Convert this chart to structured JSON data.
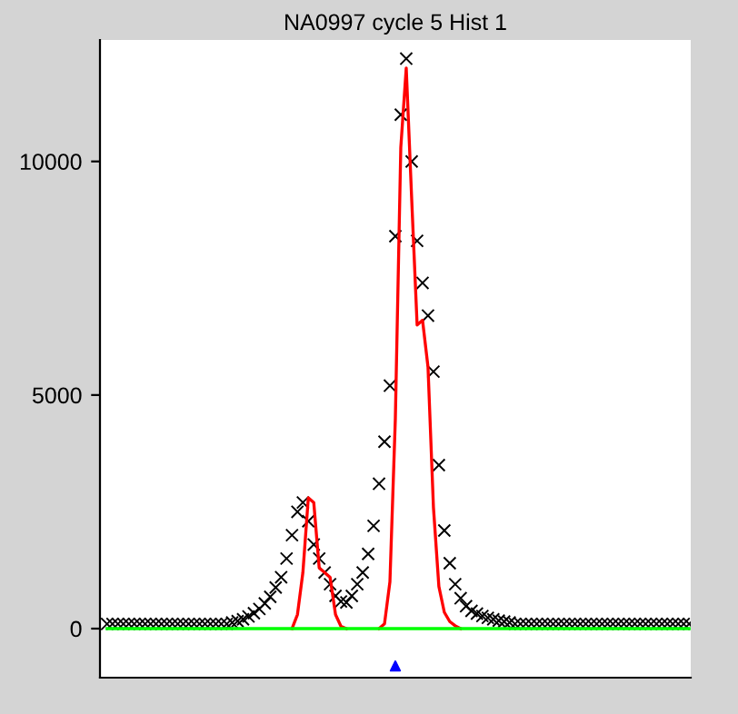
{
  "chart_data": {
    "type": "line",
    "title": "NA0997 cycle 5 Hist 1",
    "categories": [
      null,
      null,
      null,
      null,
      null,
      null,
      null,
      null,
      null,
      null,
      null,
      null,
      null,
      null,
      null,
      null,
      null,
      null,
      null,
      null,
      null,
      null,
      null,
      null,
      null,
      null,
      null,
      null,
      null,
      null,
      null,
      null,
      null,
      null,
      null,
      null,
      null,
      null,
      null,
      null,
      null,
      null,
      null,
      null,
      null,
      null,
      null,
      null,
      null,
      null,
      null,
      null,
      null,
      null,
      null,
      null,
      null,
      null,
      null,
      null,
      null,
      null,
      null,
      null,
      null,
      null,
      null,
      null,
      null,
      null,
      null,
      null,
      null,
      null,
      null,
      null,
      null,
      null,
      null,
      null,
      null,
      null,
      null,
      null,
      null,
      null,
      null,
      null,
      null,
      null,
      null,
      null,
      null,
      null,
      null,
      null,
      null,
      null,
      null,
      null,
      null,
      null,
      null,
      null,
      null,
      null,
      null,
      null
    ],
    "series": [
      {
        "color": "#00ff00",
        "values": [
          0,
          0,
          0,
          0,
          0,
          0,
          0,
          0,
          0,
          0,
          0,
          0,
          0,
          0,
          0,
          0,
          0,
          0,
          0,
          0,
          0,
          0,
          0,
          0,
          0,
          0,
          0,
          0,
          0,
          0,
          0,
          0,
          0,
          0,
          0,
          0,
          0,
          0,
          0,
          0,
          0,
          0,
          0,
          0,
          0,
          0,
          0,
          0,
          0,
          0,
          0,
          0,
          0,
          0,
          0,
          0,
          0,
          0,
          0,
          0,
          0,
          0,
          0,
          0,
          0,
          0,
          0,
          0,
          0,
          0,
          0,
          0,
          0,
          0,
          0,
          0,
          0,
          0,
          0,
          0,
          0,
          0,
          0,
          0,
          0,
          0,
          0,
          0,
          0,
          0,
          0,
          0,
          0,
          0,
          0,
          0,
          0,
          0,
          0,
          0,
          0,
          0,
          0,
          0,
          0,
          0,
          0,
          0
        ]
      },
      {
        "color": "#ff0000",
        "values": [
          null,
          null,
          null,
          null,
          null,
          null,
          null,
          null,
          null,
          null,
          null,
          null,
          null,
          null,
          null,
          null,
          null,
          null,
          null,
          null,
          null,
          null,
          null,
          null,
          null,
          null,
          null,
          null,
          null,
          null,
          null,
          null,
          null,
          null,
          0,
          300,
          1200,
          2800,
          2700,
          1300,
          1200,
          1100,
          300,
          50,
          0,
          null,
          null,
          null,
          null,
          null,
          0,
          100,
          1000,
          4500,
          10300,
          12000,
          9200,
          6500,
          6600,
          5600,
          2600,
          900,
          350,
          150,
          60,
          0,
          null,
          null,
          null,
          null,
          null,
          null,
          null,
          null,
          null,
          null,
          null,
          null,
          null,
          null,
          null,
          null,
          null,
          null,
          null,
          null,
          null,
          null,
          null,
          null,
          null,
          null,
          null,
          null,
          null,
          null,
          null,
          null,
          null,
          null,
          null,
          null,
          null,
          null,
          null,
          null,
          null,
          null
        ]
      },
      {
        "type": "scatter",
        "marker": "cross",
        "color": "#000000",
        "values": [
          100,
          100,
          100,
          100,
          100,
          100,
          100,
          100,
          100,
          100,
          100,
          100,
          100,
          100,
          100,
          100,
          100,
          100,
          100,
          100,
          100,
          100,
          100,
          130,
          160,
          200,
          260,
          330,
          420,
          540,
          680,
          880,
          1100,
          1500,
          2000,
          2500,
          2700,
          2300,
          1800,
          1500,
          1200,
          950,
          700,
          580,
          560,
          700,
          950,
          1200,
          1600,
          2200,
          3100,
          4000,
          5200,
          8400,
          11000,
          12200,
          10000,
          8300,
          7400,
          6700,
          5500,
          3500,
          2100,
          1400,
          950,
          650,
          480,
          380,
          320,
          270,
          230,
          200,
          170,
          150,
          130,
          100,
          100,
          100,
          100,
          100,
          100,
          100,
          100,
          100,
          100,
          100,
          100,
          100,
          100,
          100,
          100,
          100,
          100,
          100,
          100,
          100,
          100,
          100,
          100,
          100,
          100,
          100,
          100,
          100,
          100,
          100,
          100,
          100
        ]
      },
      {
        "type": "scatter",
        "marker": "triangle",
        "color": "#0000ff",
        "values": [
          null,
          null,
          null,
          null,
          null,
          null,
          null,
          null,
          null,
          null,
          null,
          null,
          null,
          null,
          null,
          null,
          null,
          null,
          null,
          null,
          null,
          null,
          null,
          null,
          null,
          null,
          null,
          null,
          null,
          null,
          null,
          null,
          null,
          null,
          null,
          null,
          null,
          null,
          null,
          null,
          null,
          null,
          null,
          null,
          null,
          null,
          null,
          null,
          null,
          null,
          null,
          null,
          null,
          -800,
          null,
          null,
          null,
          null,
          null,
          null,
          null,
          null,
          null,
          null,
          null,
          null,
          null,
          null,
          null,
          null,
          null,
          null,
          null,
          null,
          null,
          null,
          null,
          null,
          null,
          null,
          null,
          null,
          null,
          null,
          null,
          null,
          null,
          null,
          null,
          null,
          null,
          null,
          null,
          null,
          null,
          null,
          null,
          null,
          null,
          null,
          null,
          null,
          null,
          null,
          null,
          null,
          null,
          null
        ]
      }
    ],
    "ylim": [
      -1050,
      12600
    ],
    "yticks": [
      0,
      5000,
      10000
    ],
    "tick_labels": "y",
    "grid": false,
    "legend": false
  }
}
